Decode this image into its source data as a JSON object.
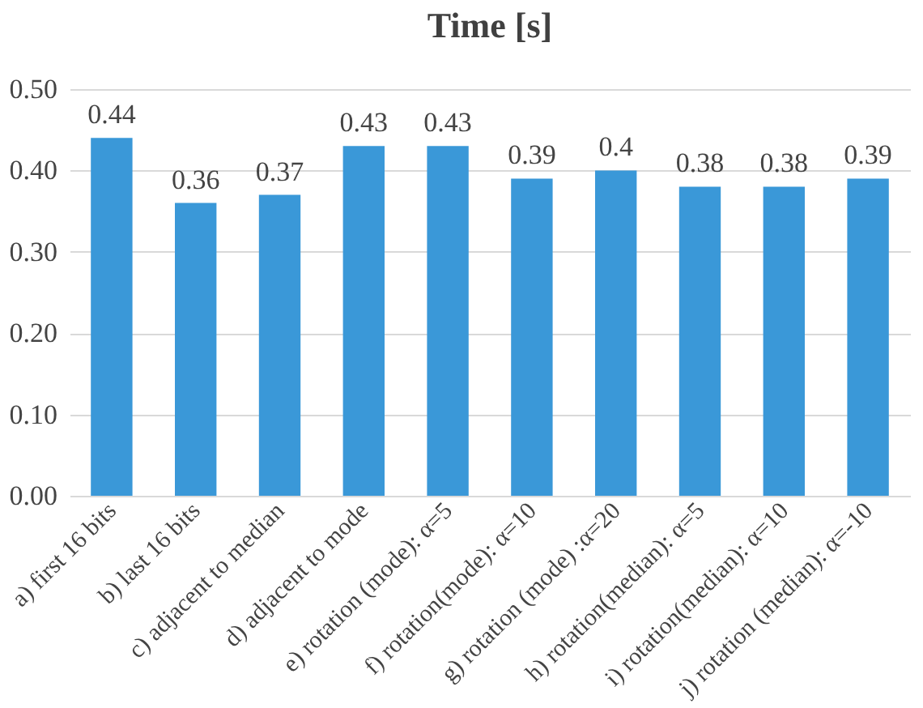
{
  "chart_data": {
    "type": "bar",
    "title": "Time [s]",
    "categories": [
      "a) first 16 bits",
      "b) last 16 bits",
      "c) adjacent to median",
      "d) adjacent to mode",
      "e) rotation (mode): α=5",
      "f) rotation(mode): α=10",
      "g) rotation (mode) :α=20",
      "h) rotation(median): α=5",
      "i) rotation(median): α=10",
      "j) rotation (median): α=-10"
    ],
    "values": [
      0.44,
      0.36,
      0.37,
      0.43,
      0.43,
      0.39,
      0.4,
      0.38,
      0.38,
      0.39
    ],
    "color": "#3a98d8",
    "ylim": [
      0,
      0.5
    ],
    "yticks": [
      {
        "value": 0,
        "label": "0.00"
      },
      {
        "value": 0.1,
        "label": "0.10"
      },
      {
        "value": 0.2,
        "label": "0.20"
      },
      {
        "value": 0.3,
        "label": "0.30"
      },
      {
        "value": 0.4,
        "label": "0.40"
      },
      {
        "value": 0.5,
        "label": "0.50"
      }
    ],
    "grid": "y",
    "data_labels": true
  }
}
